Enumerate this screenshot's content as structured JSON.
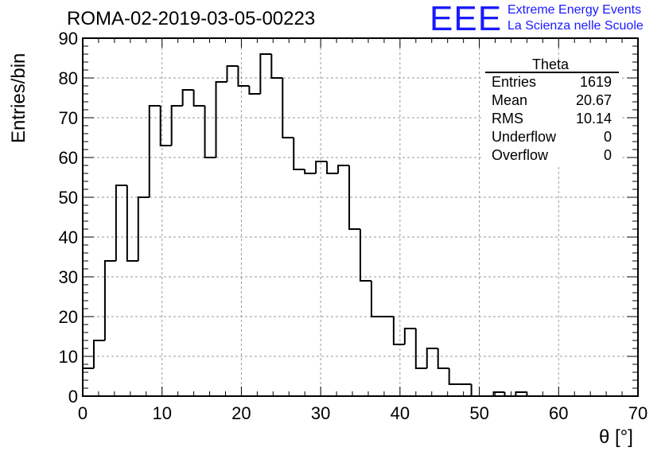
{
  "chart_data": {
    "type": "bar",
    "title": "ROMA-02-2019-03-05-00223",
    "xlabel": "θ [°]",
    "ylabel": "Entries/bin",
    "xlim": [
      0,
      70
    ],
    "ylim": [
      0,
      90
    ],
    "bin_width": 1.4,
    "xticks": [
      0,
      10,
      20,
      30,
      40,
      50,
      60,
      70
    ],
    "yticks": [
      0,
      10,
      20,
      30,
      40,
      50,
      60,
      70,
      80,
      90
    ],
    "grid": true,
    "legend": "none",
    "line_color": "#000000",
    "values": [
      7,
      14,
      34,
      53,
      34,
      50,
      73,
      63,
      73,
      77,
      73,
      60,
      79,
      83,
      78,
      76,
      86,
      80,
      65,
      57,
      56,
      59,
      56,
      58,
      42,
      29,
      20,
      20,
      13,
      17,
      7,
      12,
      7,
      3,
      3,
      0,
      0,
      1,
      0,
      1,
      0,
      0,
      0,
      0,
      0,
      0,
      0,
      0,
      0,
      0
    ]
  },
  "stats_box": {
    "title": "Theta",
    "rows": [
      {
        "label": "Entries",
        "value": "1619"
      },
      {
        "label": "Mean",
        "value": "20.67"
      },
      {
        "label": "RMS",
        "value": "10.14"
      },
      {
        "label": "Underflow",
        "value": "0"
      },
      {
        "label": "Overflow",
        "value": "0"
      }
    ]
  },
  "logo": {
    "text": "EEE",
    "line1": "Extreme Energy Events",
    "line2": "La Scienza nelle Scuole",
    "color": "#1a1aff"
  }
}
